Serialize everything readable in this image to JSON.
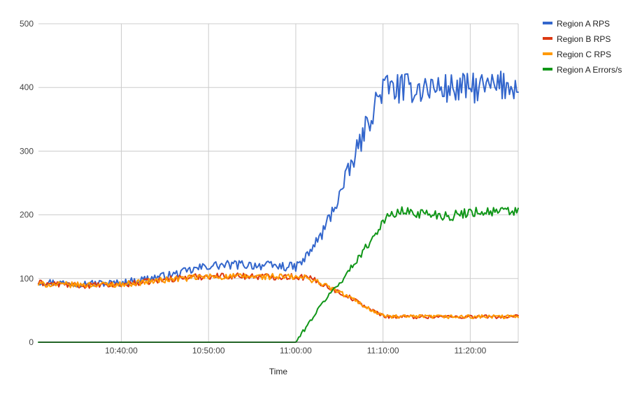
{
  "chart_data": {
    "type": "line",
    "xlabel": "Time",
    "ylabel": "",
    "x_range": [
      "10:30:30",
      "11:25:30"
    ],
    "ylim": [
      0,
      500
    ],
    "y_ticks": [
      0,
      100,
      200,
      300,
      400,
      500
    ],
    "x_ticks": [
      "10:40:00",
      "10:50:00",
      "11:00:00",
      "11:10:00",
      "11:20:00"
    ],
    "grid": true,
    "legend_position": "right",
    "series": [
      {
        "name": "Region A RPS",
        "color": "#3366cc",
        "points": [
          [
            "10:30:30",
            95
          ],
          [
            "10:35:00",
            92
          ],
          [
            "10:40:00",
            93
          ],
          [
            "10:43:00",
            100
          ],
          [
            "10:46:00",
            106
          ],
          [
            "10:50:00",
            120
          ],
          [
            "10:54:00",
            122
          ],
          [
            "10:57:00",
            120
          ],
          [
            "11:00:00",
            118
          ],
          [
            "11:01:00",
            130
          ],
          [
            "11:03:00",
            170
          ],
          [
            "11:05:00",
            230
          ],
          [
            "11:07:00",
            300
          ],
          [
            "11:09:00",
            370
          ],
          [
            "11:10:00",
            400
          ],
          [
            "11:12:00",
            398
          ],
          [
            "11:15:00",
            400
          ],
          [
            "11:18:00",
            398
          ],
          [
            "11:22:00",
            400
          ],
          [
            "11:25:30",
            405
          ]
        ]
      },
      {
        "name": "Region B RPS",
        "color": "#dc3912",
        "points": [
          [
            "10:30:30",
            93
          ],
          [
            "10:35:00",
            89
          ],
          [
            "10:40:00",
            90
          ],
          [
            "10:43:00",
            95
          ],
          [
            "10:46:00",
            100
          ],
          [
            "10:50:00",
            104
          ],
          [
            "10:54:00",
            104
          ],
          [
            "10:57:00",
            103
          ],
          [
            "11:00:00",
            103
          ],
          [
            "11:01:00",
            102
          ],
          [
            "11:02:00",
            98
          ],
          [
            "11:03:00",
            92
          ],
          [
            "11:04:00",
            85
          ],
          [
            "11:05:00",
            78
          ],
          [
            "11:06:00",
            72
          ],
          [
            "11:07:00",
            64
          ],
          [
            "11:08:00",
            56
          ],
          [
            "11:09:00",
            48
          ],
          [
            "11:10:00",
            42
          ],
          [
            "11:11:00",
            40
          ],
          [
            "11:15:00",
            40
          ],
          [
            "11:20:00",
            40
          ],
          [
            "11:25:30",
            40
          ]
        ]
      },
      {
        "name": "Region C RPS",
        "color": "#ff9900",
        "points": [
          [
            "10:30:30",
            91
          ],
          [
            "10:35:00",
            90
          ],
          [
            "10:40:00",
            91
          ],
          [
            "10:43:00",
            95
          ],
          [
            "10:46:00",
            99
          ],
          [
            "10:50:00",
            103
          ],
          [
            "10:54:00",
            103
          ],
          [
            "10:57:00",
            103
          ],
          [
            "11:00:00",
            102
          ],
          [
            "11:01:00",
            101
          ],
          [
            "11:02:00",
            98
          ],
          [
            "11:03:00",
            92
          ],
          [
            "11:04:00",
            85
          ],
          [
            "11:05:00",
            78
          ],
          [
            "11:06:00",
            72
          ],
          [
            "11:07:00",
            64
          ],
          [
            "11:08:00",
            56
          ],
          [
            "11:09:00",
            48
          ],
          [
            "11:10:00",
            42
          ],
          [
            "11:11:00",
            40
          ],
          [
            "11:15:00",
            40
          ],
          [
            "11:20:00",
            40
          ],
          [
            "11:25:30",
            40
          ]
        ]
      },
      {
        "name": "Region A Errors/s",
        "color": "#109618",
        "points": [
          [
            "10:30:30",
            0
          ],
          [
            "10:59:59",
            0
          ],
          [
            "11:00:00",
            0
          ],
          [
            "11:01:00",
            20
          ],
          [
            "11:02:00",
            40
          ],
          [
            "11:03:00",
            60
          ],
          [
            "11:04:00",
            78
          ],
          [
            "11:05:00",
            92
          ],
          [
            "11:06:00",
            110
          ],
          [
            "11:07:00",
            130
          ],
          [
            "11:08:00",
            148
          ],
          [
            "11:09:00",
            168
          ],
          [
            "11:10:00",
            190
          ],
          [
            "11:11:00",
            200
          ],
          [
            "11:12:00",
            205
          ],
          [
            "11:15:00",
            202
          ],
          [
            "11:18:00",
            198
          ],
          [
            "11:20:00",
            205
          ],
          [
            "11:25:30",
            205
          ]
        ]
      }
    ]
  }
}
